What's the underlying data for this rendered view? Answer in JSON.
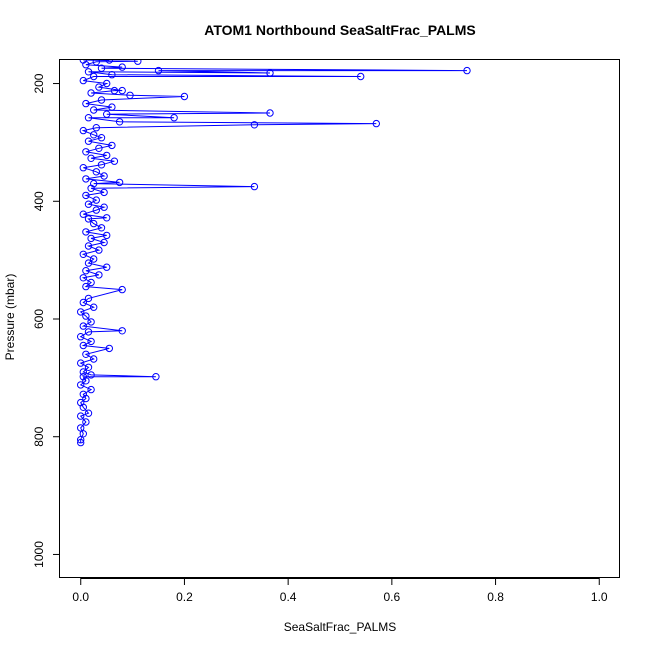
{
  "chart_data": {
    "type": "line",
    "title": "ATOM1 Northbound SeaSaltFrac_PALMS",
    "xlabel": "SeaSaltFrac_PALMS",
    "ylabel": "Pressure (mbar)",
    "xlim": [
      -0.04,
      1.04
    ],
    "ylim": [
      1040,
      160
    ],
    "y_reversed": true,
    "x_ticks": [
      0.0,
      0.2,
      0.4,
      0.6,
      0.8,
      1.0
    ],
    "x_tick_labels": [
      "0.0",
      "0.2",
      "0.4",
      "0.6",
      "0.8",
      "1.0"
    ],
    "y_ticks": [
      200,
      400,
      600,
      800,
      1000
    ],
    "y_tick_labels": [
      "200",
      "400",
      "600",
      "800",
      "1000"
    ],
    "grid": false,
    "legend": "none",
    "color": "#0000ff",
    "marker": "open-circle",
    "series": [
      {
        "values": [
          [
            0.0,
            810
          ],
          [
            0.0,
            805
          ],
          [
            0.005,
            795
          ],
          [
            0.0,
            785
          ],
          [
            0.01,
            775
          ],
          [
            0.0,
            765
          ],
          [
            0.015,
            760
          ],
          [
            0.005,
            750
          ],
          [
            0.0,
            742
          ],
          [
            0.01,
            735
          ],
          [
            0.005,
            728
          ],
          [
            0.02,
            720
          ],
          [
            0.0,
            712
          ],
          [
            0.01,
            705
          ],
          [
            0.005,
            698
          ],
          [
            0.145,
            698
          ],
          [
            0.02,
            695
          ],
          [
            0.005,
            690
          ],
          [
            0.015,
            682
          ],
          [
            0.0,
            675
          ],
          [
            0.025,
            668
          ],
          [
            0.01,
            660
          ],
          [
            0.055,
            650
          ],
          [
            0.005,
            645
          ],
          [
            0.02,
            638
          ],
          [
            0.0,
            630
          ],
          [
            0.015,
            622
          ],
          [
            0.08,
            620
          ],
          [
            0.005,
            612
          ],
          [
            0.02,
            605
          ],
          [
            0.01,
            595
          ],
          [
            0.0,
            588
          ],
          [
            0.025,
            580
          ],
          [
            0.005,
            572
          ],
          [
            0.015,
            565
          ],
          [
            0.08,
            550
          ],
          [
            0.01,
            545
          ],
          [
            0.02,
            538
          ],
          [
            0.005,
            530
          ],
          [
            0.035,
            525
          ],
          [
            0.01,
            518
          ],
          [
            0.05,
            512
          ],
          [
            0.015,
            505
          ],
          [
            0.025,
            498
          ],
          [
            0.005,
            490
          ],
          [
            0.035,
            483
          ],
          [
            0.015,
            476
          ],
          [
            0.045,
            470
          ],
          [
            0.02,
            463
          ],
          [
            0.05,
            458
          ],
          [
            0.01,
            452
          ],
          [
            0.04,
            445
          ],
          [
            0.025,
            438
          ],
          [
            0.015,
            430
          ],
          [
            0.05,
            428
          ],
          [
            0.005,
            422
          ],
          [
            0.03,
            415
          ],
          [
            0.045,
            410
          ],
          [
            0.015,
            405
          ],
          [
            0.03,
            398
          ],
          [
            0.01,
            390
          ],
          [
            0.045,
            385
          ],
          [
            0.02,
            378
          ],
          [
            0.335,
            375
          ],
          [
            0.025,
            370
          ],
          [
            0.075,
            368
          ],
          [
            0.01,
            362
          ],
          [
            0.045,
            357
          ],
          [
            0.03,
            350
          ],
          [
            0.005,
            343
          ],
          [
            0.04,
            338
          ],
          [
            0.065,
            332
          ],
          [
            0.02,
            327
          ],
          [
            0.05,
            322
          ],
          [
            0.01,
            316
          ],
          [
            0.035,
            310
          ],
          [
            0.06,
            305
          ],
          [
            0.015,
            298
          ],
          [
            0.04,
            292
          ],
          [
            0.025,
            287
          ],
          [
            0.005,
            280
          ],
          [
            0.03,
            275
          ],
          [
            0.335,
            270
          ],
          [
            0.57,
            268
          ],
          [
            0.075,
            265
          ],
          [
            0.015,
            258
          ],
          [
            0.18,
            258
          ],
          [
            0.05,
            252
          ],
          [
            0.365,
            250
          ],
          [
            0.025,
            245
          ],
          [
            0.06,
            240
          ],
          [
            0.01,
            234
          ],
          [
            0.04,
            228
          ],
          [
            0.2,
            222
          ],
          [
            0.095,
            220
          ],
          [
            0.02,
            216
          ],
          [
            0.065,
            212
          ],
          [
            0.08,
            212
          ],
          [
            0.035,
            206
          ],
          [
            0.05,
            200
          ],
          [
            0.005,
            195
          ],
          [
            0.025,
            188
          ],
          [
            0.54,
            188
          ],
          [
            0.06,
            185
          ],
          [
            0.015,
            180
          ],
          [
            0.365,
            182
          ],
          [
            0.15,
            178
          ],
          [
            0.745,
            178
          ],
          [
            0.04,
            174
          ],
          [
            0.08,
            172
          ],
          [
            0.01,
            168
          ],
          [
            0.03,
            163
          ],
          [
            0.11,
            162
          ],
          [
            0.005,
            160
          ],
          [
            0.055,
            160
          ]
        ]
      }
    ]
  }
}
